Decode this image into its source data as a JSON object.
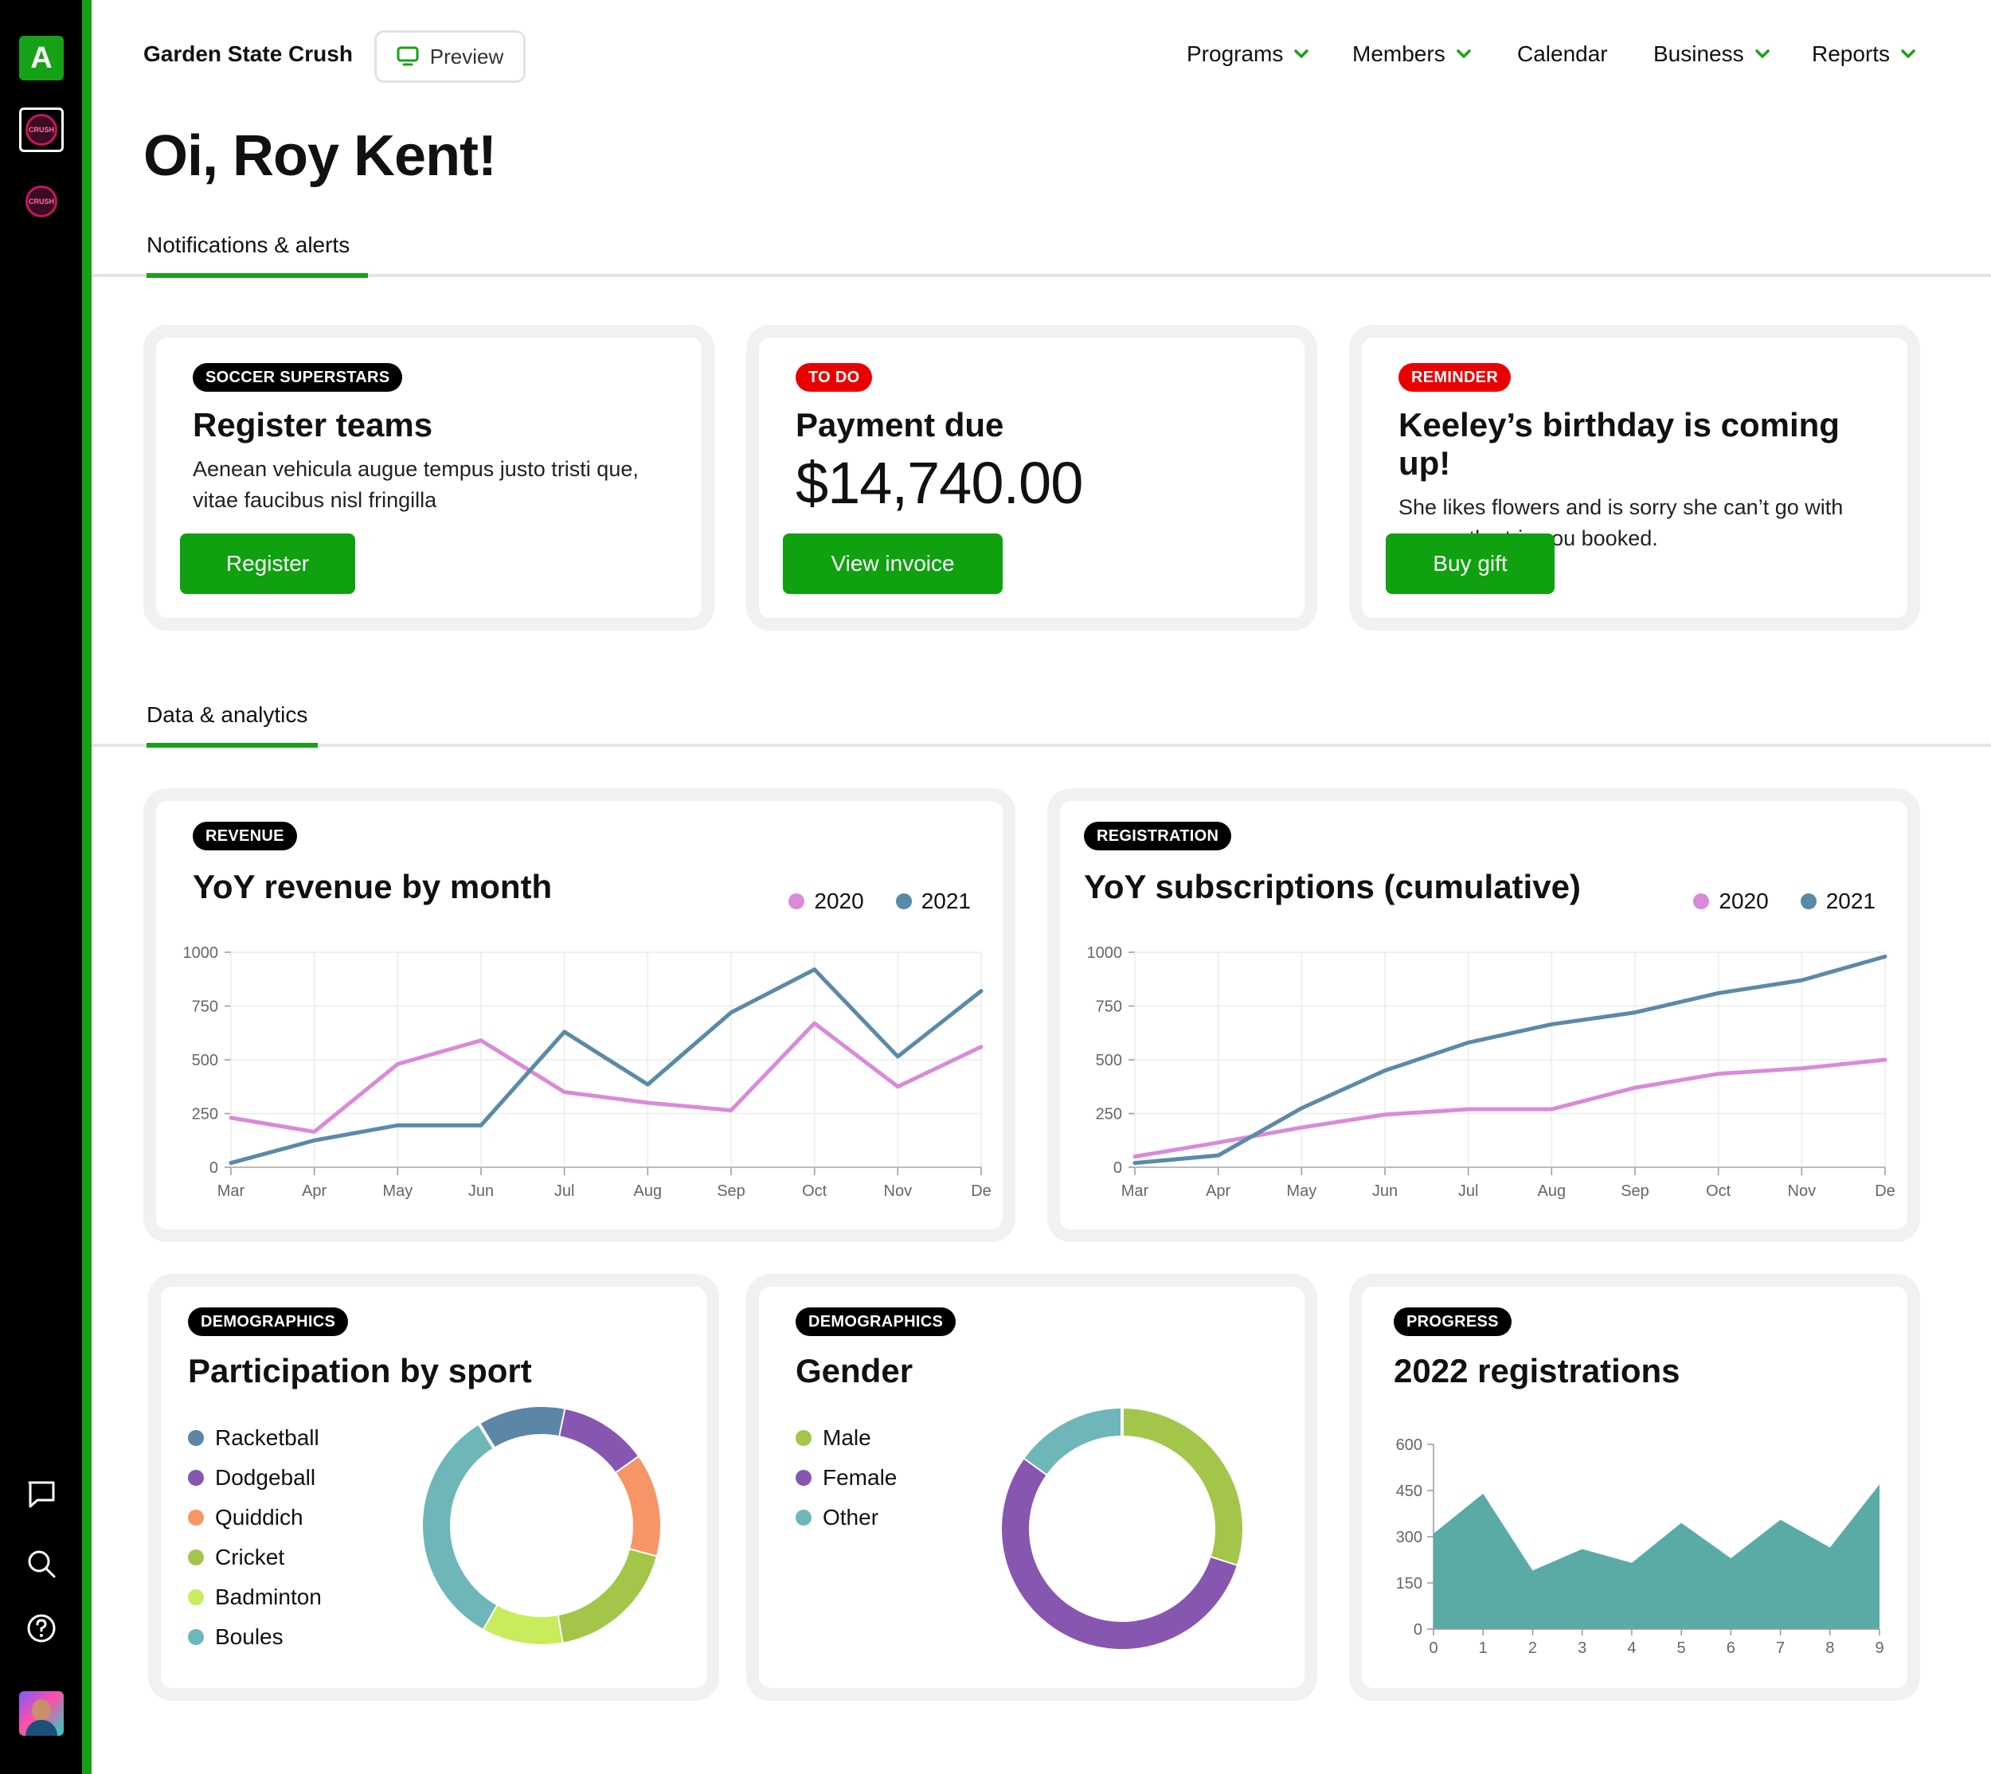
{
  "rail": {
    "logo_letter": "A",
    "team1_badge": "CRUSH",
    "team2_badge": "CRUSH"
  },
  "header": {
    "org_name": "Garden State Crush",
    "preview_label": "Preview",
    "nav": [
      "Programs",
      "Members",
      "Calendar",
      "Business",
      "Reports"
    ]
  },
  "greeting": "Oi, Roy Kent!",
  "notifications": {
    "tab_label": "Notifications & alerts",
    "cards": [
      {
        "tag": "SOCCER SUPERSTARS",
        "title": "Register teams",
        "text": "Aenean vehicula augue tempus justo tristi que, vitae faucibus nisl fringilla",
        "button": "Register"
      },
      {
        "tag": "TO DO",
        "title": "Payment due",
        "amount": "$14,740.00",
        "button": "View invoice"
      },
      {
        "tag": "REMINDER",
        "title": "Keeley’s birthday is coming up!",
        "text": "She likes flowers and is sorry she can’t go with you on the trip you booked.",
        "button": "Buy gift"
      }
    ]
  },
  "analytics": {
    "tab_label": "Data & analytics",
    "revenue": {
      "tag": "REVENUE",
      "title": "YoY revenue by month"
    },
    "registration": {
      "tag": "REGISTRATION",
      "title": "YoY subscriptions (cumulative)"
    },
    "sport": {
      "tag": "DEMOGRAPHICS",
      "title": "Participation by sport"
    },
    "gender": {
      "tag": "DEMOGRAPHICS",
      "title": "Gender"
    },
    "progress": {
      "tag": "PROGRESS",
      "title": "2022 registrations"
    }
  },
  "colors": {
    "brand_green": "#16a216",
    "button_green": "#0fa10f",
    "series_2020": "#d98ad9",
    "series_2021": "#5a8aa8",
    "area_fill": "#5aaba5"
  },
  "chart_data": [
    {
      "id": "revenue",
      "type": "line",
      "categories": [
        "Mar",
        "Apr",
        "May",
        "Jun",
        "Jul",
        "Aug",
        "Sep",
        "Oct",
        "Nov",
        "De"
      ],
      "series": [
        {
          "name": "2020",
          "color": "#d98ad9",
          "values": [
            230,
            165,
            480,
            590,
            350,
            300,
            265,
            670,
            375,
            560
          ]
        },
        {
          "name": "2021",
          "color": "#5a8aa8",
          "values": [
            20,
            125,
            195,
            195,
            630,
            385,
            720,
            920,
            515,
            820
          ]
        }
      ],
      "yticks": [
        0,
        250,
        500,
        750,
        1000
      ],
      "ylim": [
        0,
        1000
      ],
      "grid": true
    },
    {
      "id": "registration",
      "type": "line",
      "categories": [
        "Mar",
        "Apr",
        "May",
        "Jun",
        "Jul",
        "Aug",
        "Sep",
        "Oct",
        "Nov",
        "De"
      ],
      "series": [
        {
          "name": "2020",
          "color": "#d98ad9",
          "values": [
            50,
            115,
            185,
            245,
            270,
            270,
            370,
            435,
            460,
            500
          ]
        },
        {
          "name": "2021",
          "color": "#5a8aa8",
          "values": [
            20,
            55,
            275,
            450,
            580,
            665,
            720,
            810,
            870,
            980
          ]
        }
      ],
      "yticks": [
        0,
        250,
        500,
        750,
        1000
      ],
      "ylim": [
        0,
        1000
      ],
      "grid": true
    },
    {
      "id": "sport",
      "type": "pie",
      "labels": [
        "Racketball",
        "Dodgeball",
        "Quiddich",
        "Cricket",
        "Badminton",
        "Boules"
      ],
      "colors": [
        "#5b86a8",
        "#8756b0",
        "#f79566",
        "#a3c64a",
        "#c8ec5c",
        "#6eb6b8"
      ],
      "values": [
        12,
        12,
        14,
        18,
        11,
        33
      ]
    },
    {
      "id": "gender",
      "type": "pie",
      "labels": [
        "Male",
        "Female",
        "Other"
      ],
      "colors": [
        "#a3c64a",
        "#8756b0",
        "#6eb6b8"
      ],
      "values": [
        30,
        55,
        15
      ]
    },
    {
      "id": "progress",
      "type": "area",
      "x": [
        0,
        1,
        2,
        3,
        4,
        5,
        6,
        7,
        8,
        9
      ],
      "values": [
        310,
        440,
        190,
        260,
        215,
        345,
        230,
        355,
        265,
        470
      ],
      "yticks": [
        0,
        150,
        300,
        450,
        600
      ],
      "ylim": [
        0,
        600
      ]
    }
  ]
}
